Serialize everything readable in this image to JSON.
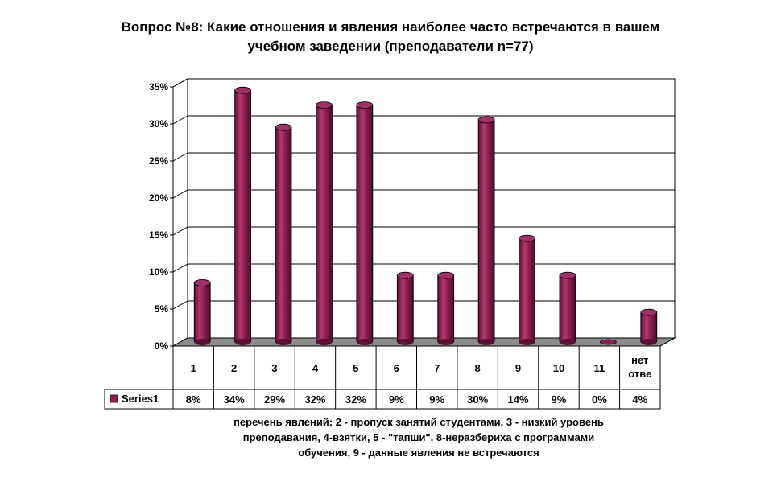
{
  "chart_data": {
    "type": "bar",
    "title": [
      "Вопрос №8: Какие отношения и явления наиболее часто встречаются в вашем",
      "учебном заведении (преподаватели n=77)"
    ],
    "xlabel": [
      "перечень явлений: 2 - пропуск занятий студентами, 3 - низкий уровень",
      "преподавания, 4-взятки, 5 - \"тапши\", 8-неразбериха с программами",
      "обучения, 9 - данные явления не встречаются"
    ],
    "ylabel": "",
    "ylim": [
      0,
      35
    ],
    "yticks": [
      "0%",
      "5%",
      "10%",
      "15%",
      "20%",
      "25%",
      "30%",
      "35%"
    ],
    "categories": [
      [
        "1"
      ],
      [
        "2"
      ],
      [
        "3"
      ],
      [
        "4"
      ],
      [
        "5"
      ],
      [
        "6"
      ],
      [
        "7"
      ],
      [
        "8"
      ],
      [
        "9"
      ],
      [
        "10"
      ],
      [
        "11"
      ],
      [
        "нет",
        "отве"
      ]
    ],
    "series": [
      {
        "name": "Series1",
        "values": [
          8,
          34,
          29,
          32,
          32,
          9,
          9,
          30,
          14,
          9,
          0,
          4
        ],
        "labels": [
          "8%",
          "34%",
          "29%",
          "32%",
          "32%",
          "9%",
          "9%",
          "30%",
          "14%",
          "9%",
          "0%",
          "4%"
        ],
        "color": "#8e1f52"
      }
    ],
    "grid": true,
    "legend": "data-table"
  }
}
